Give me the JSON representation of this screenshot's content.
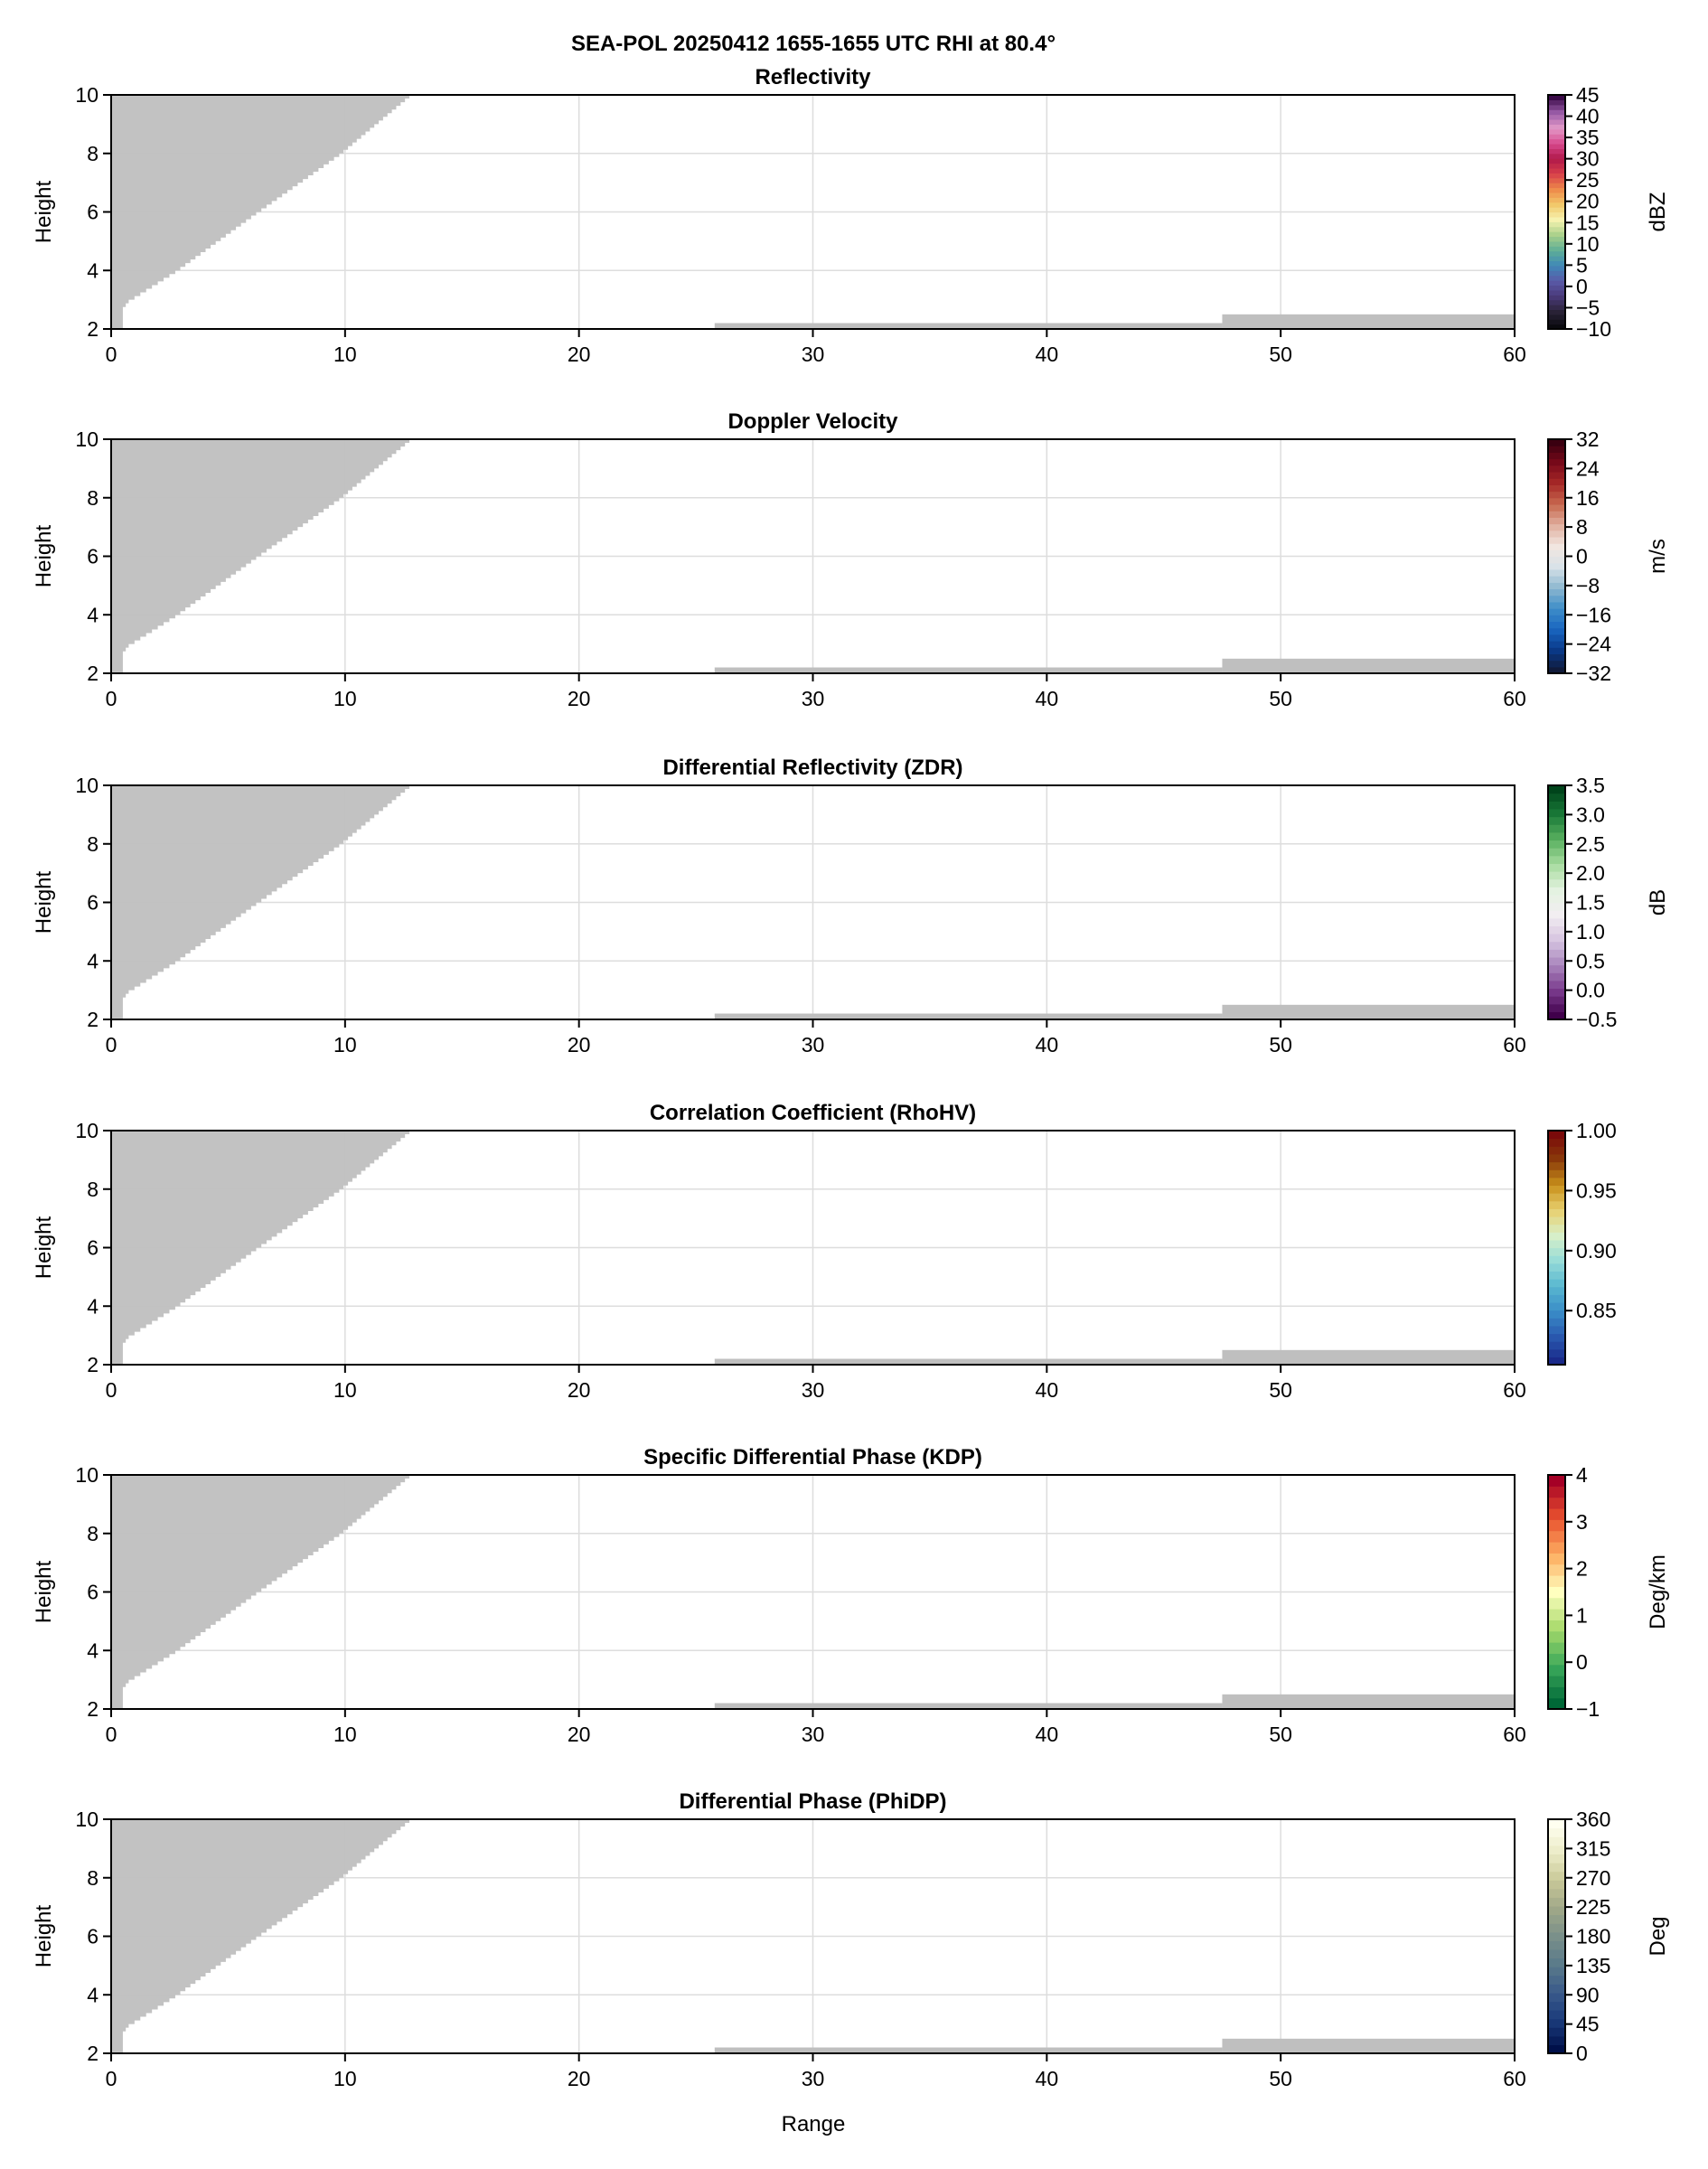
{
  "chart_data": [
    {
      "type": "heatmap",
      "suptitle": "SEA-POL 20250412 1655-1655 UTC RHI at 80.4°",
      "title": "Reflectivity",
      "ylabel": "Height",
      "xlabel": "",
      "cbar_label": "dBZ",
      "clim": [
        -10,
        45
      ],
      "cbar_ticks": [
        "45",
        "40",
        "35",
        "30",
        "25",
        "20",
        "15",
        "10",
        "5",
        "0",
        "−5",
        "−10"
      ],
      "cbar_tick_values": [
        45,
        40,
        35,
        30,
        25,
        20,
        15,
        10,
        5,
        0,
        -5,
        -10
      ],
      "colors": [
        "#0a0a0f",
        "#2a2338",
        "#4a3a7a",
        "#5a5aa8",
        "#3f88b8",
        "#5fae96",
        "#a8d08a",
        "#f6f3b0",
        "#f2c86a",
        "#ee8a4a",
        "#d8404a",
        "#b0184a",
        "#d84a8e",
        "#e29ac8",
        "#9a5ca8",
        "#3a0a48"
      ]
    },
    {
      "type": "heatmap",
      "title": "Doppler Velocity",
      "ylabel": "Height",
      "xlabel": "",
      "cbar_label": "m/s",
      "clim": [
        -32,
        32
      ],
      "cbar_ticks": [
        "32",
        "24",
        "16",
        "8",
        "0",
        "−8",
        "−16",
        "−24",
        "−32"
      ],
      "cbar_tick_values": [
        32,
        24,
        16,
        8,
        0,
        -8,
        -16,
        -24,
        -32
      ],
      "colors": [
        "#101a3a",
        "#0a3a8a",
        "#1a66c0",
        "#3e8ec8",
        "#8fb8d0",
        "#d8e2e8",
        "#f2e6e0",
        "#e0b0a0",
        "#c86a50",
        "#a82a28",
        "#7a0a1a",
        "#3a0010"
      ]
    },
    {
      "type": "heatmap",
      "title": "Differential Reflectivity (ZDR)",
      "ylabel": "Height",
      "xlabel": "",
      "cbar_label": "dB",
      "clim": [
        -0.5,
        3.5
      ],
      "cbar_ticks": [
        "3.5",
        "3.0",
        "2.5",
        "2.0",
        "1.5",
        "1.0",
        "0.5",
        "0.0",
        "−0.5"
      ],
      "cbar_tick_values": [
        3.5,
        3.0,
        2.5,
        2.0,
        1.5,
        1.0,
        0.5,
        0.0,
        -0.5
      ],
      "colors": [
        "#40004b",
        "#7a3a8c",
        "#a884bc",
        "#d6c4e0",
        "#f2eef2",
        "#e4f2e0",
        "#a8dca0",
        "#5ab060",
        "#1a7a38",
        "#00441b"
      ]
    },
    {
      "type": "heatmap",
      "title": "Correlation Coefficient (RhoHV)",
      "ylabel": "Height",
      "xlabel": "",
      "cbar_label": "",
      "clim": [
        0.805,
        1.0
      ],
      "cbar_ticks": [
        "1.00",
        "0.95",
        "0.90",
        "0.85"
      ],
      "cbar_tick_values": [
        1.0,
        0.95,
        0.9,
        0.85
      ],
      "colors": [
        "#1a2a8a",
        "#2a5ab0",
        "#3a8ec8",
        "#5ab8d0",
        "#98dcd8",
        "#d8f0c8",
        "#e8d070",
        "#c8901a",
        "#8a3a0a",
        "#7a0a0a"
      ]
    },
    {
      "type": "heatmap",
      "title": "Specific Differential Phase (KDP)",
      "ylabel": "Height",
      "xlabel": "",
      "cbar_label": "Deg/km",
      "clim": [
        -1,
        4
      ],
      "cbar_ticks": [
        "4",
        "3",
        "2",
        "1",
        "0",
        "−1"
      ],
      "cbar_tick_values": [
        4,
        3,
        2,
        1,
        0,
        -1
      ],
      "colors": [
        "#006837",
        "#3aa85a",
        "#a6d96a",
        "#ffffbf",
        "#fdae61",
        "#e8502e",
        "#a50026"
      ]
    },
    {
      "type": "heatmap",
      "title": "Differential Phase (PhiDP)",
      "ylabel": "Height",
      "xlabel": "Range",
      "cbar_label": "Deg",
      "clim": [
        0,
        360
      ],
      "cbar_ticks": [
        "360",
        "315",
        "270",
        "225",
        "180",
        "135",
        "90",
        "45",
        "0"
      ],
      "cbar_tick_values": [
        360,
        315,
        270,
        225,
        180,
        135,
        90,
        45,
        0
      ],
      "colors": [
        "#00104a",
        "#1a3a7a",
        "#3a5a8a",
        "#5a7a8a",
        "#7a908a",
        "#a0a888",
        "#c8c898",
        "#ececc8",
        "#fffff0"
      ]
    }
  ],
  "axes": {
    "xlim": [
      0,
      60
    ],
    "ylim": [
      2,
      10
    ],
    "xticks": [
      "0",
      "10",
      "20",
      "30",
      "40",
      "50",
      "60"
    ],
    "xtick_values": [
      0,
      10,
      20,
      30,
      40,
      50,
      60
    ],
    "yticks": [
      "2",
      "4",
      "6",
      "8",
      "10"
    ],
    "ytick_values": [
      2,
      4,
      6,
      8,
      10
    ],
    "grid": true
  },
  "masked_regions": {
    "color": "#bfbfbf",
    "cone_boundary": [
      [
        0.5,
        2.0
      ],
      [
        0.5,
        2.75
      ],
      [
        0.75,
        3.0
      ],
      [
        2.74,
        4.0
      ],
      [
        6.2,
        6.0
      ],
      [
        9.75,
        8.0
      ],
      [
        12.75,
        10.0
      ]
    ],
    "ground_bands": [
      {
        "x": [
          25.8,
          47.5
        ],
        "y": [
          2.0,
          2.2
        ]
      },
      {
        "x": [
          47.5,
          60
        ],
        "y": [
          2.0,
          2.5
        ]
      }
    ]
  }
}
